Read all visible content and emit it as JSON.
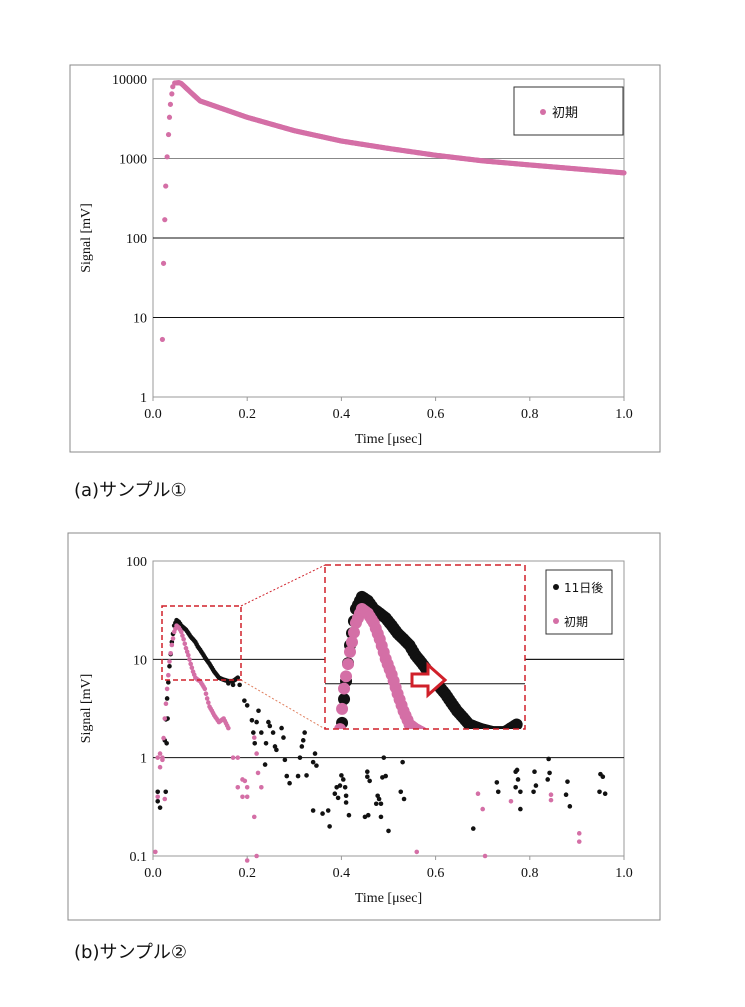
{
  "colors": {
    "initial": "#d46fa6",
    "after": "#111111",
    "zoom_box": "#d0202a"
  },
  "chart_data": [
    {
      "type": "scatter",
      "caption": "(a)サンプル①",
      "xlabel": "Time [μsec]",
      "ylabel": "Signal [mV]",
      "xlim": [
        0,
        1.0
      ],
      "ylim": [
        1,
        10000
      ],
      "yscale": "log",
      "xticks": [
        "0.0",
        "0.2",
        "0.4",
        "0.6",
        "0.8",
        "1.0"
      ],
      "yticks": [
        "1",
        "10",
        "100",
        "1000",
        "10000"
      ],
      "legend_position": "top-right",
      "series": [
        {
          "name": "初期",
          "color": "#d46fa6",
          "dense_curve": true,
          "points": [
            [
              0.02,
              5.3
            ],
            [
              0.0224,
              48
            ],
            [
              0.025,
              170
            ],
            [
              0.027,
              450
            ],
            [
              0.03,
              1050
            ],
            [
              0.033,
              2000
            ],
            [
              0.035,
              3300
            ],
            [
              0.037,
              4800
            ],
            [
              0.04,
              6500
            ],
            [
              0.042,
              8000
            ],
            [
              0.046,
              8900
            ],
            [
              0.055,
              9000
            ],
            [
              0.06,
              8800
            ],
            [
              0.08,
              6800
            ],
            [
              0.1,
              5300
            ],
            [
              0.2,
              3300
            ],
            [
              0.3,
              2240
            ],
            [
              0.4,
              1660
            ],
            [
              0.5,
              1340
            ],
            [
              0.6,
              1100
            ],
            [
              0.7,
              935
            ],
            [
              0.8,
              830
            ],
            [
              0.9,
              740
            ],
            [
              1.0,
              660
            ]
          ]
        }
      ]
    },
    {
      "type": "scatter",
      "caption": "(b)サンプル②",
      "xlabel": "Time [μsec]",
      "ylabel": "Signal [mV]",
      "xlim": [
        0,
        1.0
      ],
      "ylim": [
        0.1,
        100
      ],
      "yscale": "log",
      "xticks": [
        "0.0",
        "0.2",
        "0.4",
        "0.6",
        "0.8",
        "1.0"
      ],
      "yticks": [
        "0.1",
        "1",
        "10",
        "100"
      ],
      "legend_position": "top-right",
      "inset": {
        "xlim": [
          0.019,
          0.187
        ],
        "ylim": [
          6.2,
          35
        ]
      },
      "series": [
        {
          "name": "11日後",
          "color": "#111111",
          "curve": [
            [
              0.025,
              1.5
            ],
            [
              0.03,
              4
            ],
            [
              0.035,
              8.5
            ],
            [
              0.04,
              15
            ],
            [
              0.045,
              22
            ],
            [
              0.05,
              25
            ],
            [
              0.055,
              24
            ],
            [
              0.06,
              22
            ],
            [
              0.065,
              21
            ],
            [
              0.07,
              20
            ],
            [
              0.075,
              18.5
            ],
            [
              0.08,
              17
            ],
            [
              0.085,
              16
            ],
            [
              0.09,
              15
            ],
            [
              0.095,
              13.5
            ],
            [
              0.1,
              12.5
            ],
            [
              0.105,
              11.5
            ],
            [
              0.11,
              10.5
            ],
            [
              0.115,
              9.7
            ],
            [
              0.12,
              9
            ],
            [
              0.125,
              8.2
            ],
            [
              0.13,
              7.5
            ],
            [
              0.135,
              7
            ],
            [
              0.14,
              6.5
            ],
            [
              0.15,
              6.2
            ],
            [
              0.16,
              6
            ],
            [
              0.17,
              6
            ],
            [
              0.18,
              6.5
            ]
          ],
          "points": [
            [
              0.01,
              0.45
            ],
            [
              0.027,
              0.45
            ],
            [
              0.01,
              0.36
            ],
            [
              0.015,
              0.31
            ],
            [
              0.029,
              1.4
            ],
            [
              0.031,
              2.5
            ],
            [
              0.16,
              5.7
            ],
            [
              0.17,
              5.5
            ],
            [
              0.184,
              5.5
            ],
            [
              0.194,
              3.8
            ],
            [
              0.2,
              3.4
            ],
            [
              0.224,
              3.0
            ],
            [
              0.21,
              2.4
            ],
            [
              0.22,
              2.3
            ],
            [
              0.245,
              2.3
            ],
            [
              0.248,
              2.1
            ],
            [
              0.273,
              2.0
            ],
            [
              0.213,
              1.8
            ],
            [
              0.23,
              1.8
            ],
            [
              0.255,
              1.8
            ],
            [
              0.277,
              1.6
            ],
            [
              0.216,
              1.4
            ],
            [
              0.24,
              1.4
            ],
            [
              0.259,
              1.3
            ],
            [
              0.262,
              1.2
            ],
            [
              0.322,
              1.8
            ],
            [
              0.319,
              1.5
            ],
            [
              0.316,
              1.3
            ],
            [
              0.312,
              1.0
            ],
            [
              0.344,
              1.1
            ],
            [
              0.34,
              0.9
            ],
            [
              0.347,
              0.83
            ],
            [
              0.238,
              0.85
            ],
            [
              0.28,
              0.95
            ],
            [
              0.284,
              0.65
            ],
            [
              0.29,
              0.55
            ],
            [
              0.308,
              0.65
            ],
            [
              0.326,
              0.66
            ],
            [
              0.4,
              0.66
            ],
            [
              0.404,
              0.6
            ],
            [
              0.39,
              0.5
            ],
            [
              0.397,
              0.52
            ],
            [
              0.408,
              0.5
            ],
            [
              0.386,
              0.43
            ],
            [
              0.393,
              0.39
            ],
            [
              0.41,
              0.41
            ],
            [
              0.41,
              0.35
            ],
            [
              0.34,
              0.29
            ],
            [
              0.36,
              0.27
            ],
            [
              0.372,
              0.29
            ],
            [
              0.375,
              0.2
            ],
            [
              0.416,
              0.26
            ],
            [
              0.455,
              0.72
            ],
            [
              0.455,
              0.64
            ],
            [
              0.46,
              0.58
            ],
            [
              0.49,
              1.0
            ],
            [
              0.494,
              0.65
            ],
            [
              0.487,
              0.63
            ],
            [
              0.477,
              0.41
            ],
            [
              0.48,
              0.38
            ],
            [
              0.474,
              0.34
            ],
            [
              0.484,
              0.34
            ],
            [
              0.457,
              0.26
            ],
            [
              0.45,
              0.25
            ],
            [
              0.484,
              0.25
            ],
            [
              0.5,
              0.18
            ],
            [
              0.526,
              0.45
            ],
            [
              0.53,
              0.9
            ],
            [
              0.533,
              0.38
            ],
            [
              0.68,
              0.19
            ],
            [
              0.73,
              0.56
            ],
            [
              0.733,
              0.45
            ],
            [
              0.77,
              0.72
            ],
            [
              0.773,
              0.75
            ],
            [
              0.775,
              0.6
            ],
            [
              0.77,
              0.5
            ],
            [
              0.78,
              0.45
            ],
            [
              0.78,
              0.3
            ],
            [
              0.81,
              0.72
            ],
            [
              0.813,
              0.52
            ],
            [
              0.808,
              0.45
            ],
            [
              0.84,
              0.97
            ],
            [
              0.842,
              0.7
            ],
            [
              0.838,
              0.6
            ],
            [
              0.88,
              0.57
            ],
            [
              0.877,
              0.42
            ],
            [
              0.885,
              0.32
            ],
            [
              0.95,
              0.68
            ],
            [
              0.955,
              0.64
            ],
            [
              0.948,
              0.45
            ],
            [
              0.96,
              0.43
            ]
          ]
        },
        {
          "name": "初期",
          "color": "#d46fa6",
          "curve": [
            [
              0.02,
              1.0
            ],
            [
              0.025,
              2.5
            ],
            [
              0.03,
              5
            ],
            [
              0.035,
              9.5
            ],
            [
              0.04,
              14
            ],
            [
              0.045,
              19
            ],
            [
              0.05,
              22
            ],
            [
              0.055,
              21
            ],
            [
              0.06,
              19
            ],
            [
              0.065,
              16
            ],
            [
              0.07,
              13
            ],
            [
              0.075,
              11
            ],
            [
              0.08,
              9
            ],
            [
              0.085,
              7.5
            ],
            [
              0.09,
              6.5
            ],
            [
              0.095,
              6.2
            ],
            [
              0.1,
              6.0
            ],
            [
              0.105,
              5.5
            ],
            [
              0.11,
              5.0
            ],
            [
              0.115,
              4.0
            ],
            [
              0.12,
              3.3
            ],
            [
              0.125,
              3.0
            ],
            [
              0.13,
              2.7
            ],
            [
              0.14,
              2.3
            ],
            [
              0.15,
              2.5
            ],
            [
              0.16,
              2.0
            ]
          ],
          "points": [
            [
              0.01,
              1.0
            ],
            [
              0.015,
              1.1
            ],
            [
              0.02,
              0.95
            ],
            [
              0.015,
              0.8
            ],
            [
              0.01,
              0.4
            ],
            [
              0.025,
              0.38
            ],
            [
              0.005,
              0.11
            ],
            [
              0.17,
              1.0
            ],
            [
              0.18,
              1.0
            ],
            [
              0.19,
              0.6
            ],
            [
              0.195,
              0.58
            ],
            [
              0.2,
              0.5
            ],
            [
              0.2,
              0.4
            ],
            [
              0.18,
              0.5
            ],
            [
              0.19,
              0.4
            ],
            [
              0.215,
              1.6
            ],
            [
              0.22,
              1.1
            ],
            [
              0.223,
              0.7
            ],
            [
              0.23,
              0.5
            ],
            [
              0.215,
              0.25
            ],
            [
              0.2,
              0.09
            ],
            [
              0.22,
              0.1
            ],
            [
              0.56,
              0.11
            ],
            [
              0.69,
              0.43
            ],
            [
              0.7,
              0.3
            ],
            [
              0.705,
              0.1
            ],
            [
              0.76,
              0.36
            ],
            [
              0.845,
              0.37
            ],
            [
              0.845,
              0.42
            ],
            [
              0.905,
              0.14
            ],
            [
              0.905,
              0.17
            ]
          ]
        }
      ]
    }
  ]
}
